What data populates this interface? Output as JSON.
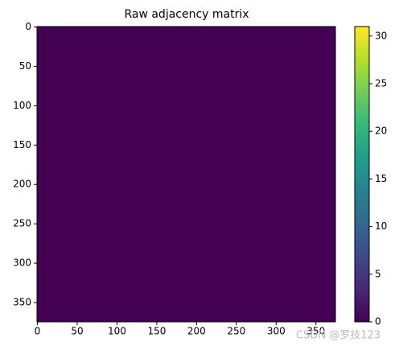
{
  "chart_data": {
    "type": "heatmap",
    "title": "Raw adjacency matrix",
    "xlim": [
      -0.5,
      374.5
    ],
    "ylim": [
      374.5,
      -0.5
    ],
    "xticks": [
      0,
      50,
      100,
      150,
      200,
      250,
      300,
      350
    ],
    "yticks": [
      0,
      50,
      100,
      150,
      200,
      250,
      300,
      350
    ],
    "matrix_value": 0,
    "colormap": [
      "#440154",
      "#482878",
      "#3e4989",
      "#31688e",
      "#26828e",
      "#1f9e89",
      "#35b779",
      "#6ece58",
      "#b5de2b",
      "#fde725"
    ],
    "clim": [
      0,
      31
    ],
    "cticks": [
      0,
      5,
      10,
      15,
      20,
      25,
      30
    ]
  },
  "watermark": "CSDN @罗技123"
}
